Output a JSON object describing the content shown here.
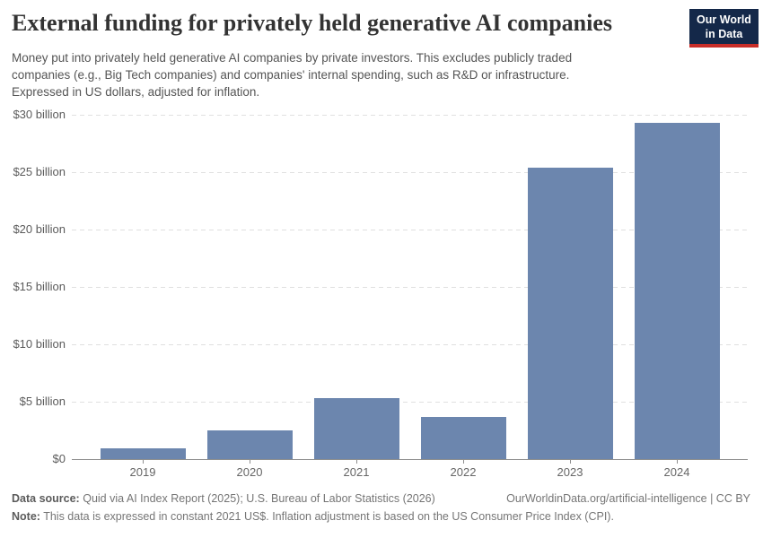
{
  "header": {
    "title": "External funding for privately held generative AI companies",
    "subtitle_lines": [
      "Money put into privately held generative AI companies by private investors. This excludes publicly traded",
      "companies (e.g., Big Tech companies) and companies' internal spending, such as R&D or infrastructure.",
      "Expressed in US dollars, adjusted for inflation."
    ],
    "logo": {
      "line1": "Our World",
      "line2": "in Data"
    }
  },
  "chart_data": {
    "type": "bar",
    "title": "External funding for privately held generative AI companies",
    "categories": [
      "2019",
      "2020",
      "2021",
      "2022",
      "2023",
      "2024"
    ],
    "values": [
      0.9,
      2.5,
      5.3,
      3.7,
      25.4,
      29.3
    ],
    "unit": "US$ billion, constant 2021 US$",
    "xlabel": "",
    "ylabel": "",
    "ylim": [
      0,
      30
    ],
    "ytick_values": [
      0,
      5,
      10,
      15,
      20,
      25,
      30
    ],
    "ytick_labels": [
      "$0",
      "$5 billion",
      "$10 billion",
      "$15 billion",
      "$20 billion",
      "$25 billion",
      "$30 billion"
    ],
    "grid": "horizontal-dashed",
    "legend": "none",
    "bar_color": "#6c86ae"
  },
  "footer": {
    "data_source_label": "Data source:",
    "data_source_text": "Quid via AI Index Report (2025); U.S. Bureau of Labor Statistics (2026)",
    "link": "OurWorldinData.org/artificial-intelligence | CC BY",
    "note_label": "Note:",
    "note_text": "This data is expressed in constant 2021 US$. Inflation adjustment is based on the US Consumer Price Index (CPI)."
  },
  "colors": {
    "bar": "#6c86ae",
    "grid": "#e0e0e0",
    "axis": "#8f8f8f",
    "title": "#333333",
    "subtitle": "#555555",
    "footer_text": "#757575",
    "logo_bg": "#142849",
    "logo_red": "#c82d28"
  }
}
